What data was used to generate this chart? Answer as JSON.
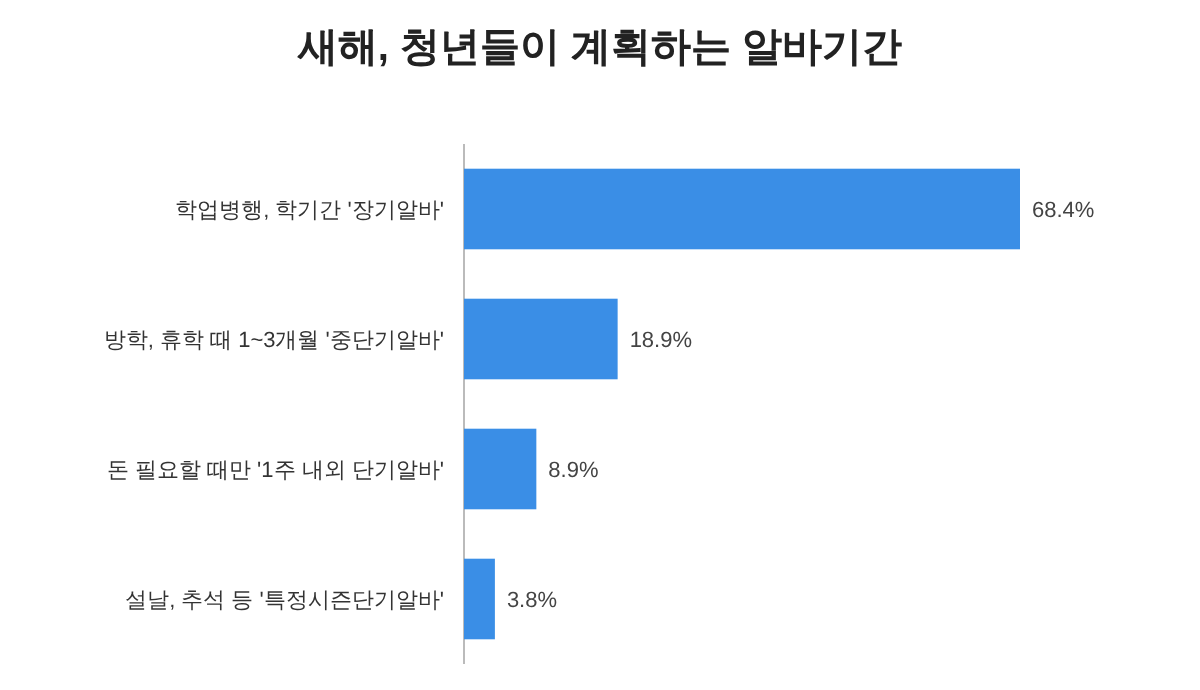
{
  "chart_data": {
    "type": "bar",
    "orientation": "horizontal",
    "title": "새해, 청년들이 계획하는 알바기간",
    "categories": [
      "학업병행, 학기간 '장기알바'",
      "방학, 휴학 때 1~3개월 '중단기알바'",
      "돈 필요할 때만 '1주 내외 단기알바'",
      "설날, 추석 등 '특정시즌단기알바'"
    ],
    "values": [
      68.4,
      18.9,
      8.9,
      3.8
    ],
    "value_labels": [
      "68.4%",
      "18.9%",
      "8.9%",
      "3.8%"
    ],
    "color": "#3a8ee6"
  }
}
